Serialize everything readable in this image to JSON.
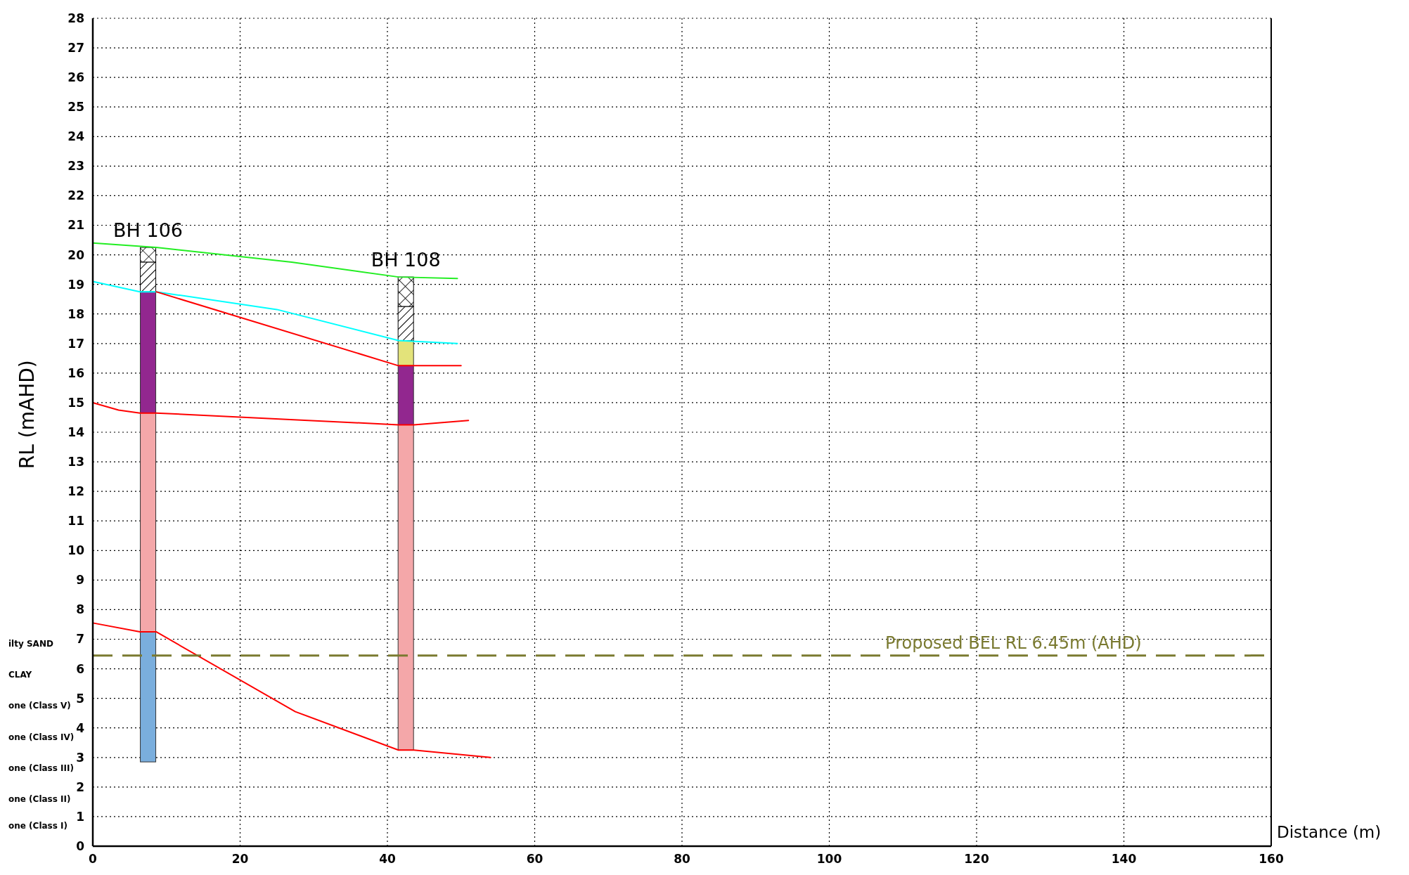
{
  "chart_data": {
    "type": "line",
    "xlabel": "Distance (m)",
    "ylabel": "RL (mAHD)",
    "xlim": [
      0,
      160
    ],
    "xticks": [
      0,
      20,
      40,
      60,
      80,
      100,
      120,
      140,
      160
    ],
    "ylim": [
      0,
      28
    ],
    "yticks": [
      0,
      1,
      2,
      3,
      4,
      5,
      6,
      7,
      8,
      9,
      10,
      11,
      12,
      13,
      14,
      15,
      16,
      17,
      18,
      19,
      20,
      21,
      22,
      23,
      24,
      25,
      26,
      27,
      28
    ],
    "grid": true,
    "line_style": "solid",
    "marker": "none",
    "series": [
      {
        "type": "bar",
        "color": "#000000",
        "x": [
          7.5,
          42.5
        ],
        "base": [
          19.75,
          18.25
        ],
        "values": [
          0.5,
          1.0
        ]
      },
      {
        "type": "bar",
        "color": "#000000",
        "x": [
          7.5,
          42.5
        ],
        "base": [
          18.75,
          17.1
        ],
        "values": [
          1.0,
          1.15
        ]
      },
      {
        "type": "bar",
        "color": "#e3e37a",
        "x": [
          42.5
        ],
        "base": [
          16.25
        ],
        "values": [
          0.85
        ]
      },
      {
        "type": "bar",
        "color": "#92278f",
        "x": [
          7.5,
          42.5
        ],
        "base": [
          14.65,
          14.25
        ],
        "values": [
          4.1,
          2.0
        ]
      },
      {
        "type": "bar",
        "color": "#f4a7a9",
        "x": [
          7.5,
          42.5
        ],
        "base": [
          7.25,
          3.25
        ],
        "values": [
          7.4,
          11.0
        ]
      },
      {
        "type": "bar",
        "color": "#7aaedd",
        "x": [
          7.5
        ],
        "base": [
          2.85
        ],
        "values": [
          4.4
        ]
      },
      {
        "color": "#22ee22",
        "x": [
          0,
          8.6,
          27,
          41.5,
          49.5
        ],
        "values": [
          20.4,
          20.25,
          19.75,
          19.25,
          19.2
        ]
      },
      {
        "color": "#00ffff",
        "x": [
          0,
          6.4,
          8.6,
          25,
          41.5,
          49.5
        ],
        "values": [
          19.1,
          18.75,
          18.75,
          18.15,
          17.1,
          17.0
        ]
      },
      {
        "color": "#ff0000",
        "x": [
          8.6,
          41.5,
          50
        ],
        "values": [
          18.75,
          16.25,
          16.25
        ]
      },
      {
        "color": "#ff0000",
        "x": [
          0,
          3.5,
          6.4,
          8.6,
          41.5,
          43.6,
          51
        ],
        "values": [
          15.0,
          14.75,
          14.65,
          14.65,
          14.25,
          14.25,
          14.4
        ]
      },
      {
        "color": "#ff0000",
        "x": [
          0,
          6.4,
          8.6,
          27.5,
          41.5,
          43.6,
          54
        ],
        "values": [
          7.55,
          7.25,
          7.25,
          4.55,
          3.25,
          3.25,
          3.0
        ]
      }
    ],
    "ref_lines": [
      {
        "axis": "y",
        "value": 6.45,
        "label": "Proposed BEL RL 6.45m (AHD)",
        "color": "#7a7a30",
        "line_style": "dashed"
      }
    ],
    "annotations": [
      "BH 106",
      "BH 108",
      "ilty SAND",
      "CLAY",
      "one (Class V)",
      "one (Class IV)",
      "one (Class III)",
      "one (Class II)",
      "one (Class I)"
    ]
  }
}
